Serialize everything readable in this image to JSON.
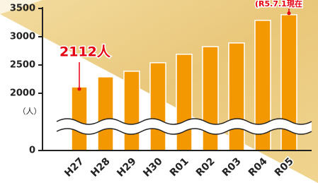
{
  "chart_data": {
    "type": "bar",
    "categories": [
      "H27",
      "H28",
      "H29",
      "H30",
      "R01",
      "R02",
      "R03",
      "R04",
      "R05"
    ],
    "values": [
      2112,
      2290,
      2390,
      2540,
      2690,
      2825,
      2890,
      3290,
      3390
    ],
    "color": "#f39800",
    "ylim": [
      0,
      3500
    ],
    "ybreak": 2000,
    "yticks": [
      0,
      2000,
      2500,
      3000,
      3500
    ],
    "unit_label": "（人）",
    "annotations": [
      "2112人",
      "(R5.7.1現在"
    ]
  }
}
